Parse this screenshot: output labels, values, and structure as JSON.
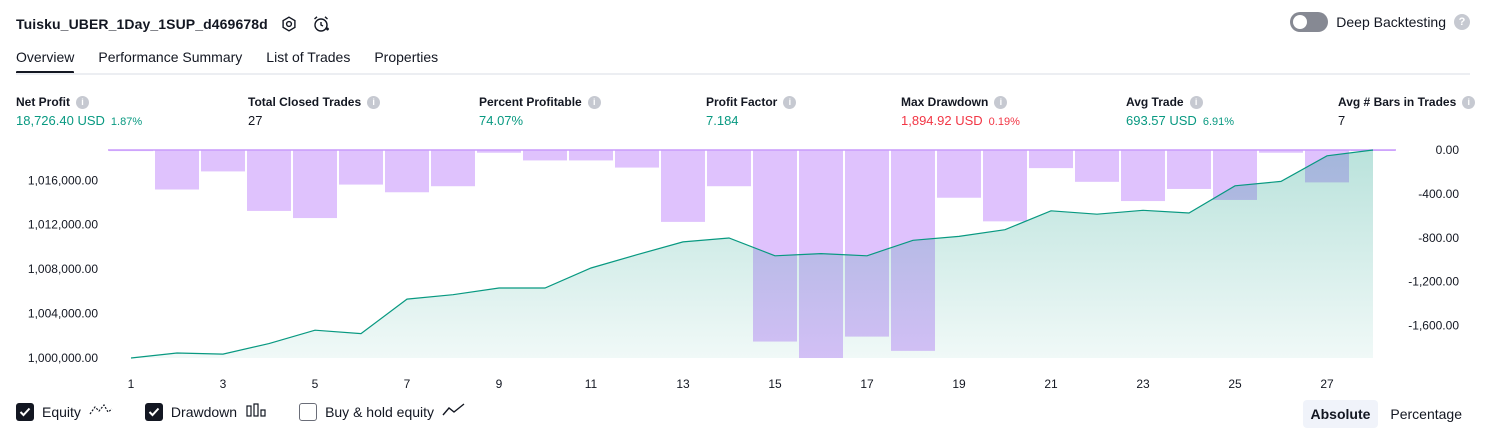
{
  "header": {
    "title": "Tuisku_UBER_1Day_1SUP_d469678d",
    "settings_icon": "gear-icon",
    "alert_icon": "alarm-clock-icon",
    "deep_backtesting_label": "Deep Backtesting",
    "deep_backtesting_on": false,
    "help_glyph": "?"
  },
  "tabs": [
    {
      "label": "Overview",
      "active": true
    },
    {
      "label": "Performance Summary",
      "active": false
    },
    {
      "label": "List of Trades",
      "active": false
    },
    {
      "label": "Properties",
      "active": false
    }
  ],
  "metrics": [
    {
      "label": "Net Profit",
      "value": "18,726.40 USD",
      "pct": "1.87%",
      "color": "#089981"
    },
    {
      "label": "Total Closed Trades",
      "value": "27",
      "pct": "",
      "color": "#131722"
    },
    {
      "label": "Percent Profitable",
      "value": "74.07%",
      "pct": "",
      "color": "#089981"
    },
    {
      "label": "Profit Factor",
      "value": "7.184",
      "pct": "",
      "color": "#089981"
    },
    {
      "label": "Max Drawdown",
      "value": "1,894.92 USD",
      "pct": "0.19%",
      "color": "#f23645"
    },
    {
      "label": "Avg Trade",
      "value": "693.57 USD",
      "pct": "6.91%",
      "color": "#089981"
    },
    {
      "label": "Avg # Bars in Trades",
      "value": "7",
      "pct": "",
      "color": "#131722"
    }
  ],
  "chart_data": {
    "type": "area",
    "x": [
      1,
      2,
      3,
      4,
      5,
      6,
      7,
      8,
      9,
      10,
      11,
      12,
      13,
      14,
      15,
      16,
      17,
      18,
      19,
      20,
      21,
      22,
      23,
      24,
      25,
      26,
      27,
      28
    ],
    "x_ticks": [
      "1",
      "3",
      "5",
      "7",
      "9",
      "11",
      "13",
      "15",
      "17",
      "19",
      "21",
      "23",
      "25",
      "27"
    ],
    "left_axis": {
      "ticks": [
        "1,016,000.00",
        "1,012,000.00",
        "1,008,000.00",
        "1,004,000.00",
        "1,000,000.00"
      ],
      "range": [
        1000000,
        1018726.4
      ]
    },
    "right_axis": {
      "ticks": [
        "0.00",
        "-400.00",
        "-800.00",
        "-1,200.00",
        "-1,600.00"
      ],
      "range": [
        -1894.92,
        0
      ]
    },
    "series": [
      {
        "name": "Equity",
        "kind": "line-area",
        "color": "#089981",
        "values": [
          1000000,
          1000450,
          1000350,
          1001300,
          1002500,
          1002200,
          1005300,
          1005700,
          1006300,
          1006300,
          1008100,
          1009300,
          1010450,
          1010800,
          1009200,
          1009400,
          1009200,
          1010600,
          1010950,
          1011550,
          1013250,
          1012950,
          1013300,
          1013050,
          1015500,
          1015900,
          1018200,
          1018726.4
        ]
      },
      {
        "name": "Drawdown",
        "kind": "bars",
        "color": "#c99afb",
        "values": [
          -10,
          -360,
          -195,
          -555,
          -620,
          -315,
          -385,
          -330,
          -25,
          -95,
          -95,
          -160,
          -655,
          -330,
          -1745,
          -1895,
          -1700,
          -1830,
          -435,
          -650,
          -165,
          -290,
          -465,
          -355,
          -455,
          -25,
          -295,
          0
        ]
      }
    ],
    "ylabel": "",
    "xlabel": ""
  },
  "legend": [
    {
      "label": "Equity",
      "checked": true,
      "icon": "equity-line-icon"
    },
    {
      "label": "Drawdown",
      "checked": true,
      "icon": "drawdown-bars-icon"
    },
    {
      "label": "Buy & hold equity",
      "checked": false,
      "icon": "buy-hold-line-icon"
    }
  ],
  "modes": [
    {
      "label": "Absolute",
      "active": true
    },
    {
      "label": "Percentage",
      "active": false
    }
  ]
}
